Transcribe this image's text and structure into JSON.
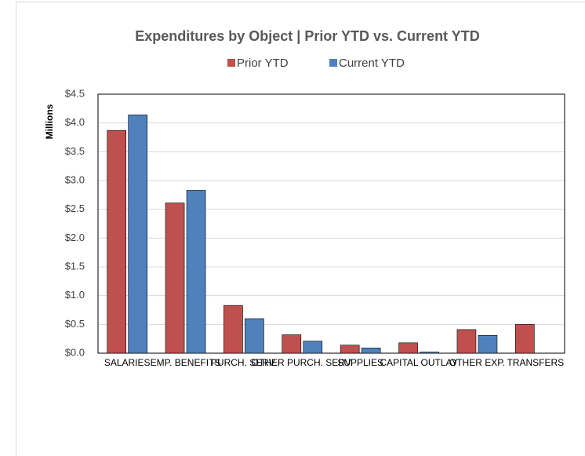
{
  "chart_data": {
    "type": "bar",
    "title": "Expenditures by Object | Prior YTD vs. Current YTD",
    "y_label": "Millions",
    "categories": [
      "SALARIES",
      "EMP. BENEFITS",
      "PURCH. SERV.",
      "OTHER PURCH. SERV.",
      "SUPPLIES",
      "CAPITAL OUTLAY",
      "OTHER EXP.",
      "TRANSFERS"
    ],
    "series": [
      {
        "name": "Prior YTD",
        "color": "#c0504d",
        "values": [
          3.87,
          2.61,
          0.83,
          0.32,
          0.14,
          0.18,
          0.41,
          0.5
        ]
      },
      {
        "name": "Current YTD",
        "color": "#4f81bd",
        "values": [
          4.14,
          2.83,
          0.6,
          0.21,
          0.09,
          0.02,
          0.31,
          0
        ]
      }
    ],
    "ylim": [
      0,
      4.5
    ],
    "yticks": [
      {
        "value": 0,
        "label": "$0.0"
      },
      {
        "value": 0.5,
        "label": "$0.5"
      },
      {
        "value": 1,
        "label": "$1.0"
      },
      {
        "value": 1.5,
        "label": "$1.5"
      },
      {
        "value": 2,
        "label": "$2.0"
      },
      {
        "value": 2.5,
        "label": "$2.5"
      },
      {
        "value": 3,
        "label": "$3.0"
      },
      {
        "value": 3.5,
        "label": "$3.5"
      },
      {
        "value": 4,
        "label": "$4.0"
      },
      {
        "value": 4.5,
        "label": "$4.5"
      }
    ],
    "grid": true,
    "legend": "top"
  }
}
